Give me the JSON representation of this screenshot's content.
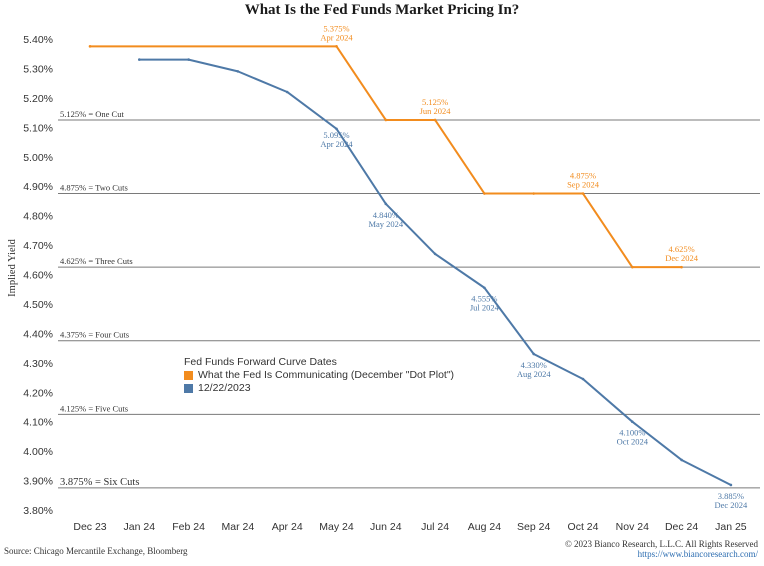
{
  "chart_data": {
    "type": "line",
    "title": "What Is the Fed Funds Market Pricing In?",
    "ylabel": "Implied Yield",
    "xlabel": "",
    "ylim": [
      3.8,
      5.4
    ],
    "y_ticks": [
      "5.40%",
      "5.30%",
      "5.20%",
      "5.10%",
      "5.00%",
      "4.90%",
      "4.80%",
      "4.70%",
      "4.60%",
      "4.50%",
      "4.40%",
      "4.30%",
      "4.20%",
      "4.10%",
      "4.00%",
      "3.90%",
      "3.80%"
    ],
    "y_tick_values": [
      5.4,
      5.3,
      5.2,
      5.1,
      5.0,
      4.9,
      4.8,
      4.7,
      4.6,
      4.5,
      4.4,
      4.3,
      4.2,
      4.1,
      4.0,
      3.9,
      3.8
    ],
    "categories": [
      "Dec 23",
      "Jan 24",
      "Feb 24",
      "Mar 24",
      "Apr 24",
      "May 24",
      "Jun 24",
      "Jul 24",
      "Aug 24",
      "Sep 24",
      "Oct 24",
      "Nov 24",
      "Dec 24",
      "Jan 25"
    ],
    "grid": false,
    "reference_lines": [
      {
        "value": 5.125,
        "label": "5.125% = One Cut"
      },
      {
        "value": 4.875,
        "label": "4.875% = Two Cuts"
      },
      {
        "value": 4.625,
        "label": "4.625% = Three Cuts"
      },
      {
        "value": 4.375,
        "label": "4.375% = Four Cuts"
      },
      {
        "value": 4.125,
        "label": "4.125% = Five Cuts"
      },
      {
        "value": 3.875,
        "label": "3.875% = Six Cuts"
      }
    ],
    "legend": {
      "title": "Fed Funds Forward Curve Dates",
      "placement": "center"
    },
    "series": [
      {
        "name": "What the Fed Is Communicating (December \"Dot Plot\")",
        "color": "#F28C1E",
        "x": [
          "Dec 23",
          "May 24",
          "Jun 24",
          "Jul 24",
          "Aug 24",
          "Sep 24",
          "Oct 24",
          "Nov 24",
          "Dec 24"
        ],
        "values": [
          5.375,
          5.375,
          5.125,
          5.125,
          4.875,
          4.875,
          4.875,
          4.625,
          4.625
        ],
        "annotations": [
          {
            "x": "May 24",
            "value": 5.375,
            "line1": "5.375%",
            "line2": "Apr 2024"
          },
          {
            "x": "Jul 24",
            "value": 5.125,
            "line1": "5.125%",
            "line2": "Jun 2024"
          },
          {
            "x": "Oct 24",
            "value": 4.875,
            "line1": "4.875%",
            "line2": "Sep 2024"
          },
          {
            "x": "Dec 24",
            "value": 4.625,
            "line1": "4.625%",
            "line2": "Dec 2024"
          }
        ]
      },
      {
        "name": "12/22/2023",
        "color": "#4E79A7",
        "x": [
          "Jan 24",
          "Feb 24",
          "Mar 24",
          "Apr 24",
          "May 24",
          "Jun 24",
          "Jul 24",
          "Aug 24",
          "Sep 24",
          "Oct 24",
          "Nov 24",
          "Dec 24",
          "Jan 25"
        ],
        "values": [
          5.33,
          5.33,
          5.29,
          5.22,
          5.095,
          4.84,
          4.67,
          4.555,
          4.33,
          4.245,
          4.1,
          3.97,
          3.885
        ],
        "annotations": [
          {
            "x": "May 24",
            "value": 5.095,
            "line1": "5.095%",
            "line2": "Apr 2024"
          },
          {
            "x": "Jun 24",
            "value": 4.84,
            "line1": "4.840%",
            "line2": "May 2024"
          },
          {
            "x": "Aug 24",
            "value": 4.555,
            "line1": "4.555%",
            "line2": "Jul 2024"
          },
          {
            "x": "Sep 24",
            "value": 4.33,
            "line1": "4.330%",
            "line2": "Aug 2024"
          },
          {
            "x": "Nov 24",
            "value": 4.1,
            "line1": "4.100%",
            "line2": "Oct 2024"
          },
          {
            "x": "Jan 25",
            "value": 3.885,
            "line1": "3.885%",
            "line2": "Dec 2024"
          }
        ]
      }
    ]
  },
  "footer": {
    "source": "Source: Chicago Mercantile Exchange, Bloomberg",
    "copyright": "© 2023 Bianco Research, L.L.C. All Rights Reserved",
    "website": "https://www.biancoresearch.com/"
  }
}
